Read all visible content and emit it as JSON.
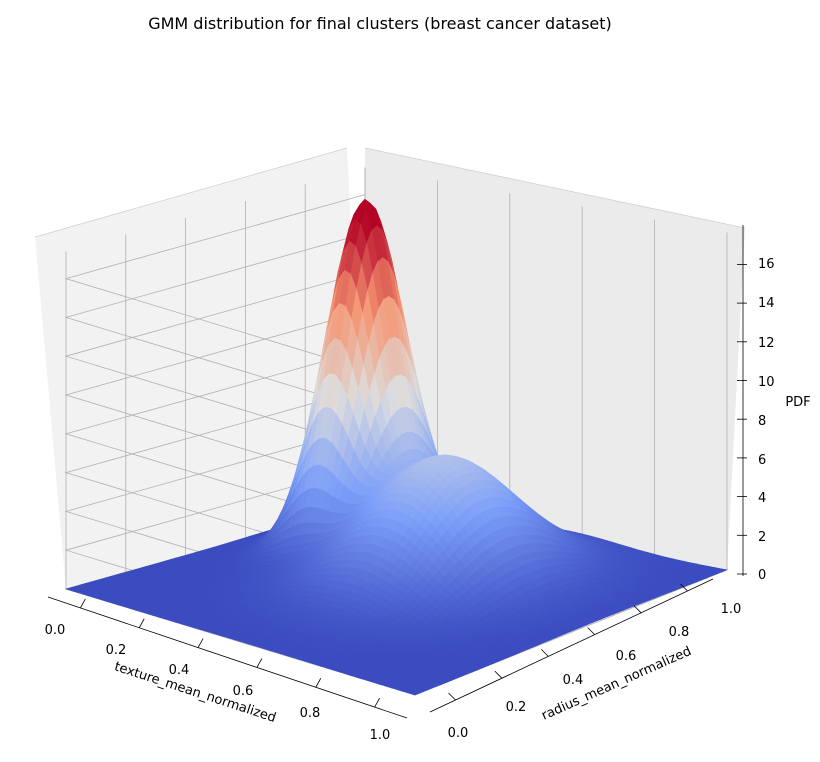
{
  "chart_data": {
    "type": "surface",
    "title": "GMM distribution for final clusters (breast cancer dataset)",
    "xlabel": "texture_mean_normalized",
    "ylabel": "radius_mean_normalized",
    "zlabel": "PDF",
    "xlim": [
      0,
      1
    ],
    "ylim": [
      0,
      1
    ],
    "zlim": [
      0,
      17
    ],
    "x_ticks": [
      "0.0",
      "0.2",
      "0.4",
      "0.6",
      "0.8",
      "1.0"
    ],
    "y_ticks": [
      "0.0",
      "0.2",
      "0.4",
      "0.6",
      "0.8",
      "1.0"
    ],
    "z_ticks": [
      "0",
      "2",
      "4",
      "6",
      "8",
      "10",
      "12",
      "14",
      "16"
    ],
    "colormap": "coolwarm",
    "grid": true,
    "components": [
      {
        "mean_x": 0.25,
        "mean_y": 0.7,
        "sigma_x": 0.075,
        "sigma_y": 0.1,
        "peak": 17.3
      },
      {
        "mean_x": 0.55,
        "mean_y": 0.6,
        "sigma_x": 0.15,
        "sigma_y": 0.18,
        "peak": 6.5
      }
    ]
  }
}
